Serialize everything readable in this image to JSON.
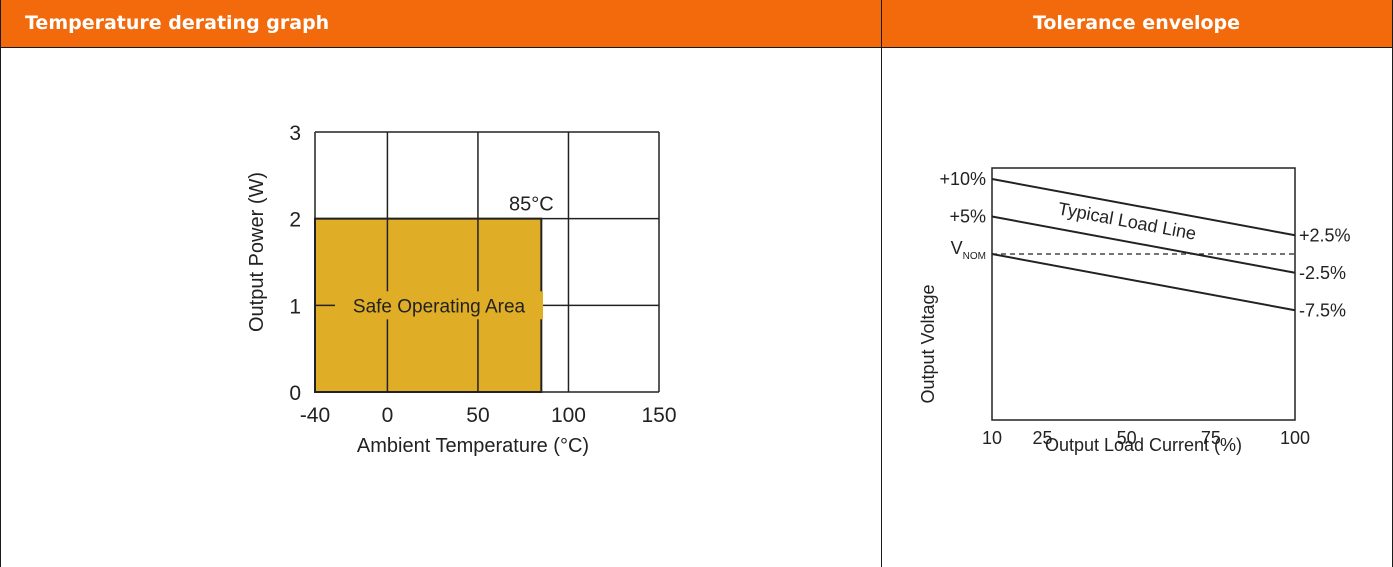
{
  "panels": {
    "left_title": "Temperature derating graph",
    "right_title": "Tolerance envelope"
  },
  "colors": {
    "header": "#f26a0c",
    "safe_area": "#e0ad26",
    "line": "#222222"
  },
  "chart_data": [
    {
      "type": "area",
      "xlabel": "Ambient Temperature (°C)",
      "ylabel": "Output Power (W)",
      "xlim": [
        -40,
        150
      ],
      "ylim": [
        0,
        3
      ],
      "x_ticks": [
        "-40",
        "0",
        "50",
        "100",
        "150"
      ],
      "y_ticks": [
        "0",
        "1",
        "2",
        "3"
      ],
      "series": [
        {
          "x": [
            -40,
            85,
            85
          ],
          "y": [
            2,
            2,
            0
          ]
        }
      ],
      "annotations": [
        "85°C",
        "Safe Operating Area"
      ],
      "grid": true
    },
    {
      "type": "line",
      "xlabel": "Output Load Current (%)",
      "ylabel": "Output Voltage",
      "xlim": [
        10,
        100
      ],
      "x_ticks": [
        "10",
        "25",
        "50",
        "75",
        "100"
      ],
      "left_labels": [
        "+10%",
        "+5%"
      ],
      "vnom_label": {
        "main": "V",
        "sub": "NOM"
      },
      "right_labels": [
        "+2.5%",
        "-2.5%",
        "-7.5%"
      ],
      "series": [
        {
          "x": [
            10,
            100
          ],
          "y": [
            10,
            2.5
          ]
        },
        {
          "x": [
            10,
            100
          ],
          "y": [
            5,
            -2.5
          ]
        },
        {
          "x": [
            10,
            100
          ],
          "y": [
            0,
            -7.5
          ]
        }
      ],
      "reference_line": {
        "y": 0,
        "style": "dashed"
      },
      "annotations": [
        "Typical Load Line"
      ],
      "grid": false
    }
  ]
}
